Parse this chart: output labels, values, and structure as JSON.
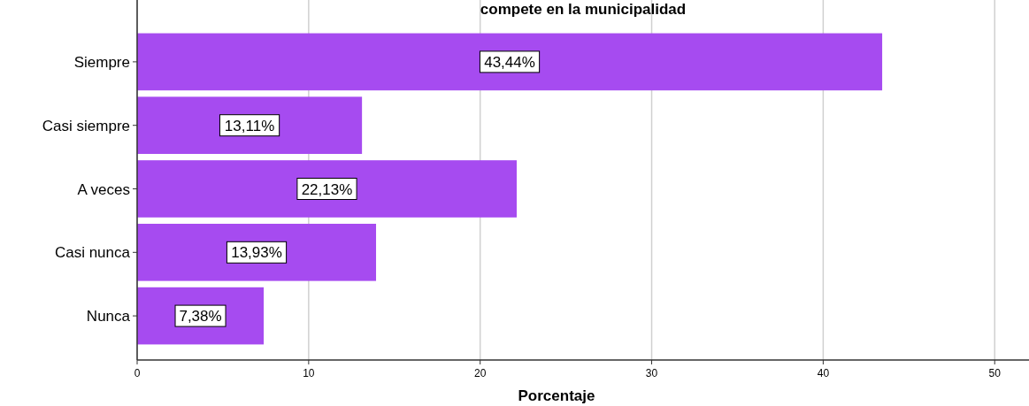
{
  "chart_data": {
    "type": "bar",
    "orientation": "horizontal",
    "title": "compete en la municipalidad",
    "xlabel": "Porcentaje",
    "categories": [
      "Siempre",
      "Casi siempre",
      "A veces",
      "Casi nunca",
      "Nunca"
    ],
    "values": [
      43.44,
      13.11,
      22.13,
      13.93,
      7.38
    ],
    "value_labels": [
      "43,44%",
      "13,11%",
      "22,13%",
      "13,93%",
      "7,38%"
    ],
    "color": "#a64bf0",
    "xlim": [
      0,
      52
    ],
    "xticks": [
      0,
      10,
      20,
      30,
      40,
      50
    ],
    "grid": "x"
  }
}
